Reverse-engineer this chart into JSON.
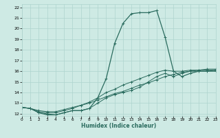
{
  "xlabel": "Humidex (Indice chaleur)",
  "bg_color": "#ceeae4",
  "grid_color": "#aed4ce",
  "line_color": "#2a6b5e",
  "xlim": [
    0,
    23
  ],
  "ylim": [
    11.8,
    22.3
  ],
  "xticks": [
    0,
    1,
    2,
    3,
    4,
    5,
    6,
    7,
    8,
    9,
    10,
    11,
    12,
    13,
    14,
    15,
    16,
    17,
    18,
    19,
    20,
    21,
    22,
    23
  ],
  "yticks": [
    12,
    13,
    14,
    15,
    16,
    17,
    18,
    19,
    20,
    21,
    22
  ],
  "line1_x": [
    0,
    1,
    2,
    3,
    4,
    5,
    6,
    7,
    8,
    9,
    10,
    11,
    12,
    13,
    14,
    15,
    16,
    17,
    18,
    19,
    20,
    21,
    22,
    23
  ],
  "line1_y": [
    12.6,
    12.5,
    12.1,
    11.9,
    11.9,
    12.1,
    12.3,
    12.3,
    12.5,
    13.5,
    15.3,
    18.6,
    20.5,
    21.4,
    21.5,
    21.5,
    21.7,
    19.2,
    16.0,
    15.5,
    15.8,
    16.0,
    16.0,
    16.0
  ],
  "line2_x": [
    0,
    1,
    2,
    3,
    4,
    5,
    6,
    7,
    8,
    9,
    10,
    11,
    12,
    13,
    14,
    15,
    16,
    17,
    18,
    19,
    20,
    21,
    22,
    23
  ],
  "line2_y": [
    12.6,
    12.5,
    12.1,
    12.0,
    11.9,
    12.1,
    12.3,
    12.3,
    12.5,
    13.0,
    13.5,
    13.8,
    14.0,
    14.2,
    14.5,
    15.0,
    15.5,
    15.8,
    15.5,
    15.8,
    16.0,
    16.0,
    16.0,
    16.1
  ],
  "line3_x": [
    0,
    1,
    2,
    3,
    4,
    5,
    6,
    7,
    8,
    9,
    10,
    11,
    12,
    13,
    14,
    15,
    16,
    17,
    18,
    19,
    20,
    21,
    22,
    23
  ],
  "line3_y": [
    12.6,
    12.5,
    12.2,
    12.1,
    12.1,
    12.3,
    12.5,
    12.8,
    13.0,
    13.3,
    13.6,
    13.9,
    14.1,
    14.4,
    14.7,
    14.9,
    15.2,
    15.5,
    15.7,
    15.9,
    16.0,
    16.1,
    16.1,
    16.1
  ],
  "line4_x": [
    0,
    1,
    2,
    3,
    4,
    5,
    6,
    7,
    8,
    9,
    10,
    11,
    12,
    13,
    14,
    15,
    16,
    17,
    18,
    19,
    20,
    21,
    22,
    23
  ],
  "line4_y": [
    12.6,
    12.5,
    12.3,
    12.2,
    12.2,
    12.4,
    12.6,
    12.8,
    13.1,
    13.5,
    14.0,
    14.3,
    14.7,
    15.0,
    15.3,
    15.6,
    15.9,
    16.1,
    16.0,
    16.0,
    16.1,
    16.1,
    16.2,
    16.2
  ]
}
